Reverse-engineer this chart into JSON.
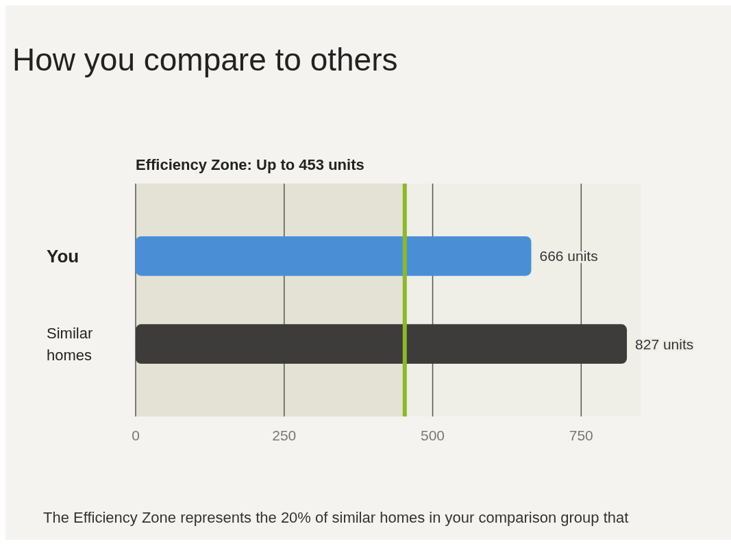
{
  "chart_data": {
    "type": "bar",
    "orientation": "horizontal",
    "title": "How you compare to others",
    "categories": [
      "You",
      "Similar homes"
    ],
    "values": [
      666,
      827
    ],
    "colors": [
      "#4a8fd6",
      "#3e3b3b"
    ],
    "value_labels": [
      "666 units",
      "827 units"
    ],
    "xlim": [
      0,
      850
    ],
    "xticks": [
      0,
      250,
      500,
      750
    ],
    "grid": "x",
    "bands": [
      {
        "axis": "x",
        "from": 0,
        "to": 453,
        "color": "#e4e2d4"
      }
    ],
    "ref_lines": [
      {
        "axis": "x",
        "value": 453,
        "label": "Efficiency Zone: Up to 453 units",
        "color": "#8cb82c"
      }
    ],
    "annotations": [
      "The Efficiency Zone represents the 20% of similar homes in your comparison group that"
    ]
  }
}
